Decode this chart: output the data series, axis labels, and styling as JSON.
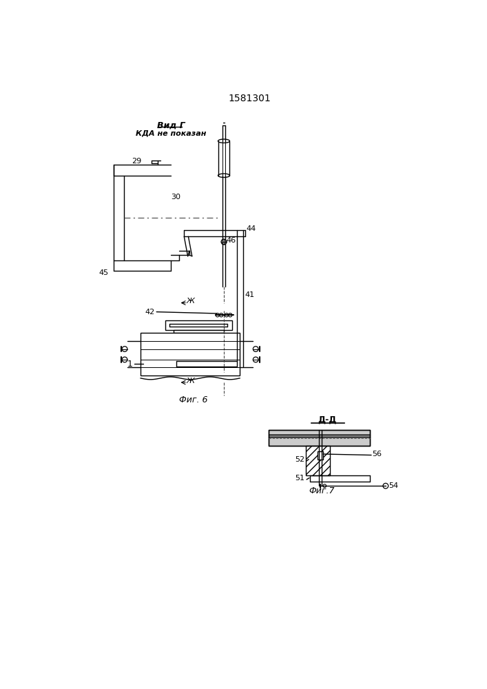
{
  "title": "1581301",
  "fig6_label": "Фиг. 6",
  "fig7_label": "Фиг.7",
  "vid_g_line1": "Вид Г",
  "vid_g_line2": "КДА не показан",
  "dd_label": "Д-Д",
  "bg_color": "#ffffff",
  "line_color": "#000000"
}
